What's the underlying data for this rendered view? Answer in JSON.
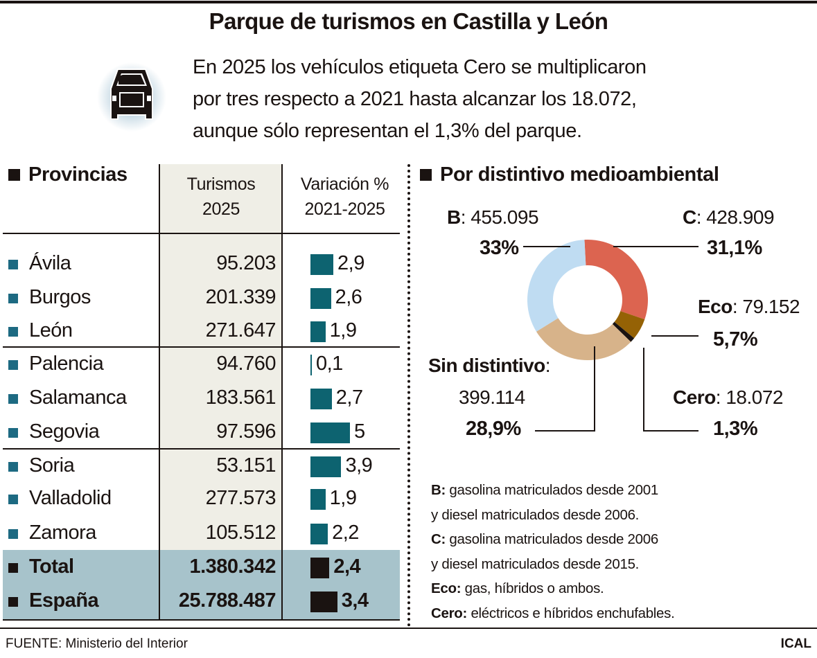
{
  "header": {
    "title": "Parque de turismos en Castilla y León",
    "subtitle_lines": [
      "En 2025 los vehículos etiqueta Cero se multiplicaron",
      "por tres respecto a 2021 hasta alcanzar los 18.072,",
      "aunque sólo representan el 1,3% del parque."
    ],
    "icon": "car-icon"
  },
  "table": {
    "section_title": "Provincias",
    "col_turismos": [
      "Turismos",
      "2025"
    ],
    "col_variacion": [
      "Variación %",
      "2021-2025"
    ],
    "rows": [
      {
        "name": "Ávila",
        "turismos": "95.203",
        "variacion": 2.9,
        "variacion_label": "2,9"
      },
      {
        "name": "Burgos",
        "turismos": "201.339",
        "variacion": 2.6,
        "variacion_label": "2,6"
      },
      {
        "name": "León",
        "turismos": "271.647",
        "variacion": 1.9,
        "variacion_label": "1,9"
      },
      {
        "name": "Palencia",
        "turismos": "94.760",
        "variacion": 0.1,
        "variacion_label": "0,1"
      },
      {
        "name": "Salamanca",
        "turismos": "183.561",
        "variacion": 2.7,
        "variacion_label": "2,7"
      },
      {
        "name": "Segovia",
        "turismos": "97.596",
        "variacion": 5,
        "variacion_label": "5"
      },
      {
        "name": "Soria",
        "turismos": "53.151",
        "variacion": 3.9,
        "variacion_label": "3,9"
      },
      {
        "name": "Valladolid",
        "turismos": "277.573",
        "variacion": 1.9,
        "variacion_label": "1,9"
      },
      {
        "name": "Zamora",
        "turismos": "105.512",
        "variacion": 2.2,
        "variacion_label": "2,2"
      }
    ],
    "totals": [
      {
        "name": "Total",
        "turismos": "1.380.342",
        "variacion": 2.4,
        "variacion_label": "2,4"
      },
      {
        "name": "España",
        "turismos": "25.788.487",
        "variacion": 3.4,
        "variacion_label": "3,4"
      }
    ],
    "colors": {
      "bar": "#0d6370",
      "total_bar": "#1a1311",
      "total_band": "#a7c3cb",
      "column_shade": "#efeee6"
    }
  },
  "chart_data": {
    "type": "pie",
    "title": "Por distintivo medioambiental",
    "donut": true,
    "slices": [
      {
        "label": "C",
        "value": 428909,
        "value_label": "428.909",
        "percent": 31.1,
        "percent_label": "31,1%",
        "color": "#dc6450"
      },
      {
        "label": "Eco",
        "value": 79152,
        "value_label": "79.152",
        "percent": 5.7,
        "percent_label": "5,7%",
        "color": "#956205"
      },
      {
        "label": "Cero",
        "value": 18072,
        "value_label": "18.072",
        "percent": 1.3,
        "percent_label": "1,3%",
        "color": "#1a1311"
      },
      {
        "label": "Sin distintivo",
        "value": 399114,
        "value_label": "399.114",
        "percent": 28.9,
        "percent_label": "28,9%",
        "color": "#d7b38a"
      },
      {
        "label": "B",
        "value": 455095,
        "value_label": "455.095",
        "percent": 33,
        "percent_label": "33%",
        "color": "#bfdcf2"
      }
    ]
  },
  "legend_notes": [
    {
      "key": "B:",
      "text": " gasolina matriculados desde 2001"
    },
    {
      "key": "",
      "text": "y diesel matriculados desde 2006."
    },
    {
      "key": "C:",
      "text": " gasolina matriculados desde 2006"
    },
    {
      "key": "",
      "text": "y diesel matriculados desde 2015."
    },
    {
      "key": "Eco:",
      "text": " gas, híbridos o ambos."
    },
    {
      "key": "Cero:",
      "text": " eléctricos e híbridos enchufables."
    }
  ],
  "footer": {
    "source": "FUENTE: Ministerio del Interior",
    "agency": "ICAL"
  }
}
